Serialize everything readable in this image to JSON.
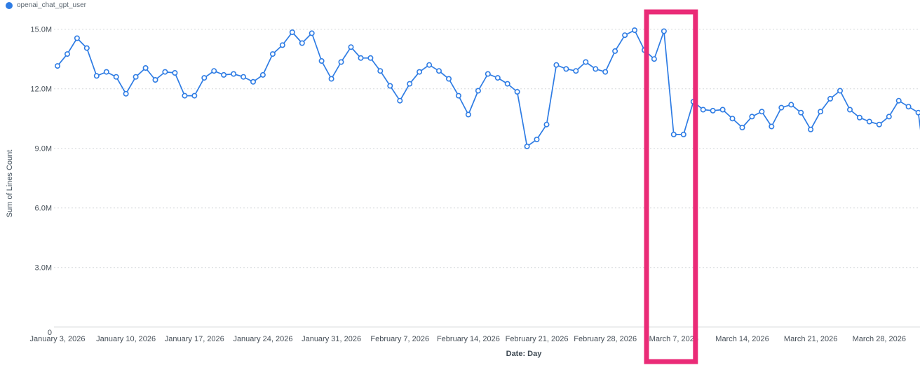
{
  "legend": {
    "series_label": "openai_chat_gpt_user"
  },
  "y_axis": {
    "title": "Sum of Lines Count",
    "tick_labels": [
      "15.0M",
      "12.0M",
      "9.0M",
      "6.0M",
      "3.0M",
      "0"
    ],
    "tick_values_millions": [
      15,
      12,
      9,
      6,
      3,
      0
    ]
  },
  "x_axis": {
    "title": "Date: Day",
    "tick_labels": [
      "January 3, 2026",
      "January 10, 2026",
      "January 17, 2026",
      "January 24, 2026",
      "January 31, 2026",
      "February 7, 2026",
      "February 14, 2026",
      "February 21, 2026",
      "February 28, 2026",
      "March 7, 2026",
      "March 14, 2026",
      "March 21, 2026",
      "March 28, 2026"
    ]
  },
  "colors": {
    "series_blue": "#2E7CE4",
    "highlight_pink": "#EA2B77",
    "gridline": "#D6D9DB",
    "axis_line": "#CFD3D6",
    "tick_text": "#475059",
    "legend_text": "#5B6670"
  },
  "chart_data": {
    "type": "line",
    "title": "",
    "x_start_date": "January 3, 2026",
    "x_interval": "1 day",
    "x_tick_every_days": 7,
    "xlabel": "Date: Day",
    "ylabel": "Sum of Lines Count",
    "ylim_millions": [
      0,
      15.9
    ],
    "grid": "horizontal-dashed",
    "legend_position": "top-left",
    "markers": "open-circle",
    "right_edge_clipped": true,
    "series": [
      {
        "name": "openai_chat_gpt_user",
        "color": "#2E7CE4",
        "values_millions": [
          13.15,
          13.75,
          14.55,
          14.05,
          12.65,
          12.85,
          12.6,
          11.75,
          12.6,
          13.05,
          12.45,
          12.85,
          12.8,
          11.65,
          11.65,
          12.55,
          12.9,
          12.7,
          12.75,
          12.6,
          12.35,
          12.7,
          13.75,
          14.2,
          14.85,
          14.3,
          14.8,
          13.4,
          12.5,
          13.35,
          14.1,
          13.55,
          13.55,
          12.9,
          12.15,
          11.4,
          12.25,
          12.85,
          13.2,
          12.9,
          12.5,
          11.65,
          10.7,
          11.9,
          12.75,
          12.55,
          12.25,
          11.85,
          9.1,
          9.45,
          10.2,
          13.2,
          13.0,
          12.9,
          13.35,
          13.0,
          12.85,
          13.9,
          14.7,
          14.95,
          13.95,
          13.5,
          14.9,
          9.7,
          9.7,
          11.35,
          10.95,
          10.9,
          10.95,
          10.5,
          10.05,
          10.6,
          10.85,
          10.1,
          11.05,
          11.2,
          10.8,
          9.95,
          10.85,
          11.5,
          11.9,
          10.95,
          10.55,
          10.35,
          10.2,
          10.6,
          11.4,
          11.1,
          10.8,
          7.0
        ]
      }
    ]
  },
  "annotation": {
    "highlight_box": {
      "shape": "rectangle-outline",
      "color": "#EA2B77",
      "start_date": "March 4, 2026",
      "end_date": "March 9, 2026",
      "start_day_index": 60,
      "end_day_index": 65
    }
  }
}
